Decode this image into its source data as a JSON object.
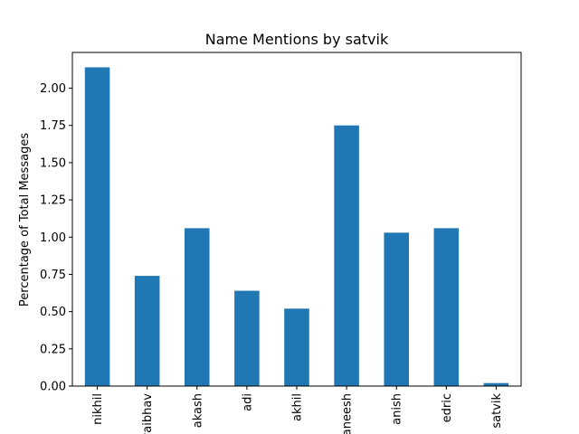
{
  "chart_data": {
    "type": "bar",
    "title": "Name Mentions by satvik",
    "xlabel": "",
    "ylabel": "Percentage of Total Messages",
    "categories": [
      "nikhil",
      "vaibhav",
      "akash",
      "adi",
      "akhil",
      "aneesh",
      "anish",
      "edric",
      "satvik"
    ],
    "values": [
      2.14,
      0.74,
      1.06,
      0.64,
      0.52,
      1.75,
      1.03,
      1.06,
      0.02
    ],
    "ylim": [
      0,
      2.24
    ],
    "yticks": [
      0.0,
      0.25,
      0.5,
      0.75,
      1.0,
      1.25,
      1.5,
      1.75,
      2.0
    ],
    "ytick_labels": [
      "0.00",
      "0.25",
      "0.50",
      "0.75",
      "1.00",
      "1.25",
      "1.50",
      "1.75",
      "2.00"
    ],
    "bar_color": "#1f77b4",
    "grid": false,
    "legend": "none"
  }
}
